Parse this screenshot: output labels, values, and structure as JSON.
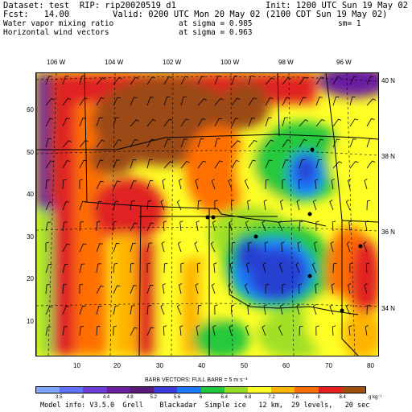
{
  "header": {
    "dataset": "Dataset: test  RIP: rip20020519 d1",
    "init": "Init: 1200 UTC Sun 19 May 02",
    "fcst": "Fcst:   14.00",
    "valid": "Valid: 0200 UTC Mon 20 May 02 (2100 CDT Sun 19 May 02)",
    "field1": "Water vapor mixing ratio",
    "field1_level": "at sigma = 0.985",
    "field1_sm": "sm= 1",
    "field2": "Horizontal wind vectors",
    "field2_level": "at sigma = 0.963"
  },
  "longitude_labels": [
    "106 W",
    "104 W",
    "102 W",
    "100 W",
    "98 W",
    "96 W"
  ],
  "latitude_labels": [
    "40 N",
    "38 N",
    "36 N",
    "34 N"
  ],
  "grid_y_ticks": [
    "60",
    "50",
    "40",
    "30",
    "20",
    "10"
  ],
  "grid_x_ticks": [
    "10",
    "20",
    "30",
    "40",
    "50",
    "60",
    "70",
    "80"
  ],
  "barbs_title": "BARB VECTORS:  FULL BARB = 5 m s⁻¹",
  "colorbar": {
    "labels": [
      "3.5",
      "4",
      "4.4",
      "4.8",
      "5.2",
      "5.6",
      "6",
      "6.4",
      "6.8",
      "7.2",
      "7.6",
      "8",
      "8.4"
    ],
    "unit": "g kg⁻¹",
    "colors": [
      "#7ba6ff",
      "#5f73ff",
      "#6b3cd6",
      "#6a1ea0",
      "#5a1878",
      "#3a3ad8",
      "#1e78ff",
      "#22c83c",
      "#96dc28",
      "#ffff28",
      "#ffb400",
      "#ff6e00",
      "#e61e1e",
      "#a0500a"
    ]
  },
  "footer": "Model info: V3.5.0  Grell    Blackadar  Simple ice   12 km,  29 levels,   20 sec",
  "map": {
    "colors": {
      "brown": "#9b4a14",
      "red": "#e02020",
      "orange": "#ff7000",
      "yellow_orange": "#ffb400",
      "yellow": "#ffff28",
      "light_green": "#a0e028",
      "green": "#28c83c",
      "cyan_blue": "#1e78ff",
      "blue": "#2840d0",
      "purple": "#6a1ea0"
    }
  }
}
